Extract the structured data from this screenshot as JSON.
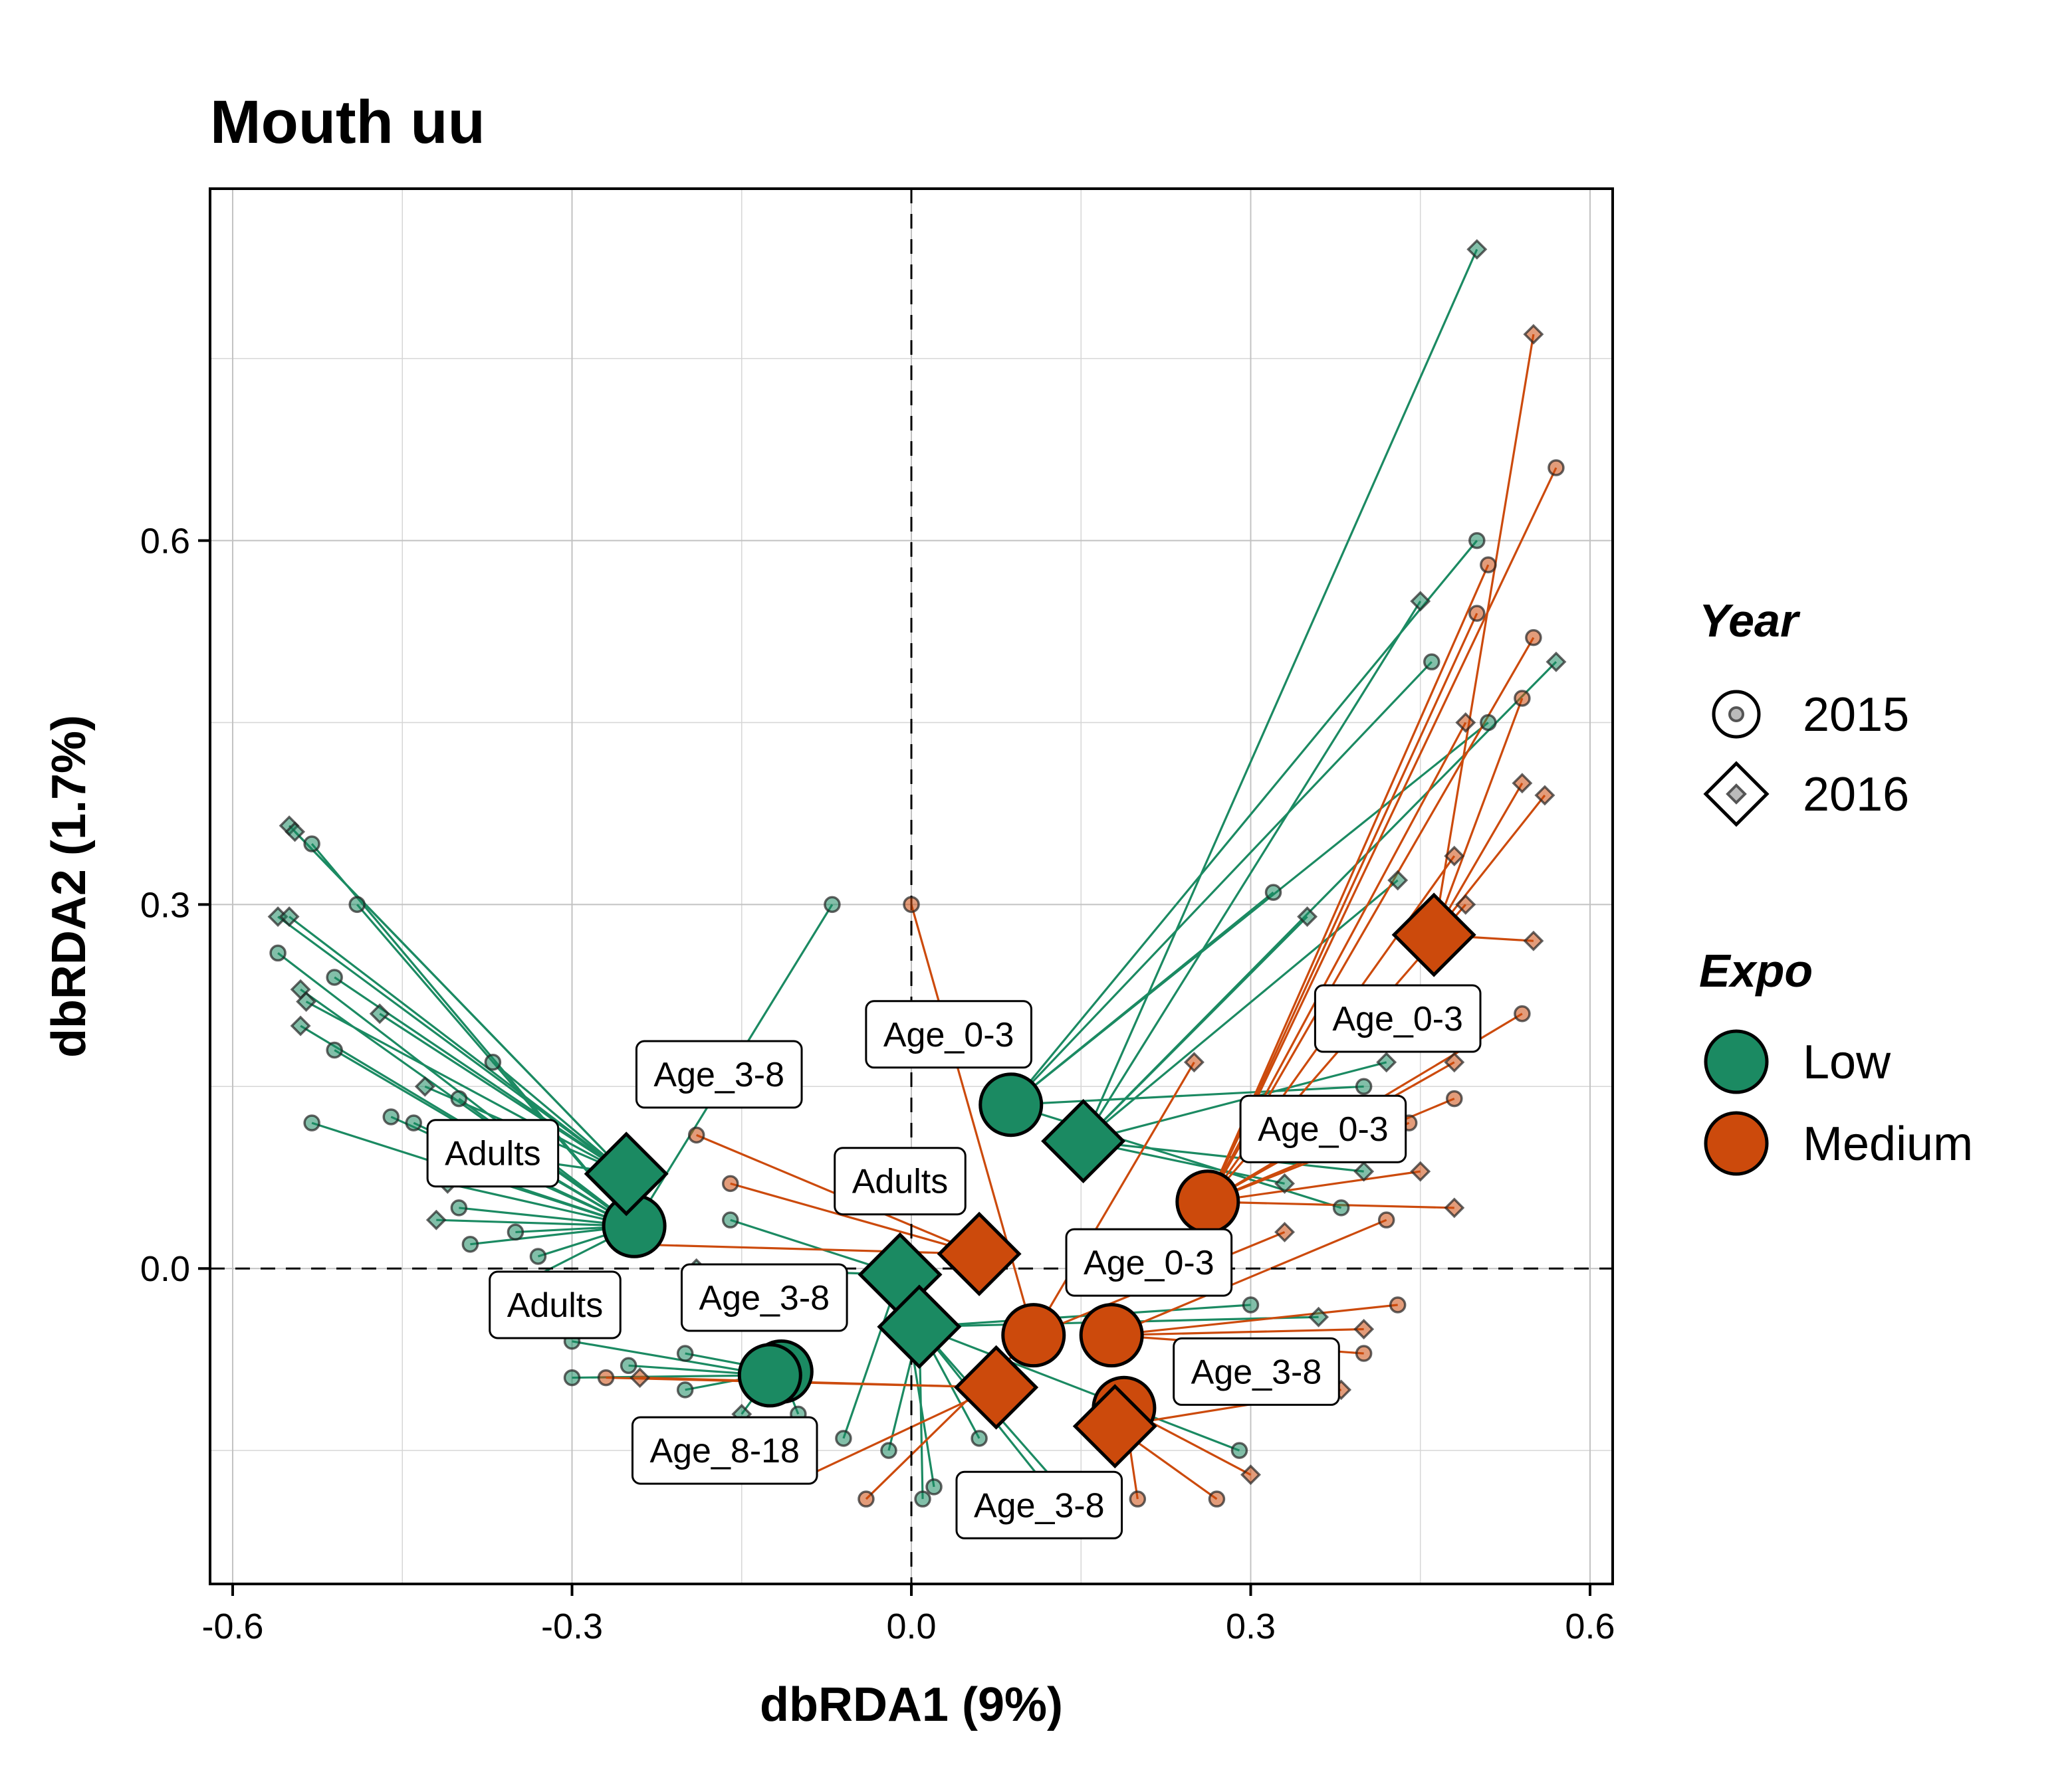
{
  "chart_data": {
    "type": "scatter",
    "title": "Mouth uu",
    "xlabel": "dbRDA1 (9%)",
    "ylabel": "dbRDA2 (1.7%)",
    "xlim": [
      -0.62,
      0.62
    ],
    "ylim": [
      -0.26,
      0.89
    ],
    "xticks": [
      -0.6,
      -0.3,
      0.0,
      0.3,
      0.6
    ],
    "xtick_labels": [
      "-0.6",
      "-0.3",
      "0.0",
      "0.3",
      "0.6"
    ],
    "yticks": [
      0.0,
      0.3,
      0.6
    ],
    "ytick_labels": [
      "0.0",
      "0.3",
      "0.6"
    ],
    "grid": true,
    "reference_lines": {
      "x": 0.0,
      "y": 0.0,
      "style": "dashed"
    },
    "legend": {
      "placement": "right",
      "year_title": "Year",
      "year_items": [
        {
          "label": "2015",
          "shape": "circle"
        },
        {
          "label": "2016",
          "shape": "diamond"
        }
      ],
      "expo_title": "Expo",
      "expo_items": [
        {
          "label": "Low",
          "color": "#1b8a62"
        },
        {
          "label": "Medium",
          "color": "#cc4a0c"
        }
      ]
    },
    "colors": {
      "Low": "#1b8a62",
      "Medium": "#cc4a0c"
    },
    "centroids": [
      {
        "expo": "Low",
        "year": "2015",
        "x": -0.245,
        "y": 0.035
      },
      {
        "expo": "Low",
        "year": "2015",
        "x": -0.115,
        "y": -0.085
      },
      {
        "expo": "Low",
        "year": "2015",
        "x": -0.125,
        "y": -0.088
      },
      {
        "expo": "Low",
        "year": "2015",
        "x": 0.088,
        "y": 0.135
      },
      {
        "expo": "Low",
        "year": "2016",
        "x": -0.252,
        "y": 0.078
      },
      {
        "expo": "Low",
        "year": "2016",
        "x": -0.01,
        "y": -0.005
      },
      {
        "expo": "Low",
        "year": "2016",
        "x": 0.007,
        "y": -0.048
      },
      {
        "expo": "Low",
        "year": "2016",
        "x": 0.152,
        "y": 0.105
      },
      {
        "expo": "Medium",
        "year": "2015",
        "x": 0.108,
        "y": -0.055
      },
      {
        "expo": "Medium",
        "year": "2015",
        "x": 0.177,
        "y": -0.055
      },
      {
        "expo": "Medium",
        "year": "2015",
        "x": 0.188,
        "y": -0.115
      },
      {
        "expo": "Medium",
        "year": "2015",
        "x": 0.262,
        "y": 0.055
      },
      {
        "expo": "Medium",
        "year": "2016",
        "x": 0.06,
        "y": 0.012
      },
      {
        "expo": "Medium",
        "year": "2016",
        "x": 0.075,
        "y": -0.098
      },
      {
        "expo": "Medium",
        "year": "2016",
        "x": 0.18,
        "y": -0.13
      },
      {
        "expo": "Medium",
        "year": "2016",
        "x": 0.462,
        "y": 0.275
      }
    ],
    "group_labels": [
      {
        "text": "Adults",
        "x": -0.37,
        "y": 0.095
      },
      {
        "text": "Adults",
        "x": -0.01,
        "y": 0.072
      },
      {
        "text": "Adults",
        "x": -0.315,
        "y": -0.03
      },
      {
        "text": "Age_3-8",
        "x": -0.17,
        "y": 0.16
      },
      {
        "text": "Age_3-8",
        "x": -0.13,
        "y": -0.024
      },
      {
        "text": "Age_3-8",
        "x": 0.305,
        "y": -0.085
      },
      {
        "text": "Age_3-8",
        "x": 0.113,
        "y": -0.195
      },
      {
        "text": "Age_0-3",
        "x": 0.033,
        "y": 0.193
      },
      {
        "text": "Age_0-3",
        "x": 0.43,
        "y": 0.206
      },
      {
        "text": "Age_0-3",
        "x": 0.364,
        "y": 0.115
      },
      {
        "text": "Age_0-3",
        "x": 0.21,
        "y": 0.005
      },
      {
        "text": "Age_8-18",
        "x": -0.165,
        "y": -0.15
      }
    ],
    "samples": [
      {
        "expo": "Low",
        "year": "2015",
        "x": -0.53,
        "y": 0.35,
        "cx": -0.245,
        "cy": 0.035
      },
      {
        "expo": "Low",
        "year": "2016",
        "x": -0.55,
        "y": 0.365,
        "cx": -0.252,
        "cy": 0.078
      },
      {
        "expo": "Low",
        "year": "2016",
        "x": -0.545,
        "y": 0.36,
        "cx": -0.252,
        "cy": 0.078
      },
      {
        "expo": "Low",
        "year": "2015",
        "x": -0.49,
        "y": 0.3,
        "cx": -0.245,
        "cy": 0.035
      },
      {
        "expo": "Low",
        "year": "2016",
        "x": -0.56,
        "y": 0.29,
        "cx": -0.252,
        "cy": 0.078
      },
      {
        "expo": "Low",
        "year": "2016",
        "x": -0.55,
        "y": 0.29,
        "cx": -0.252,
        "cy": 0.078
      },
      {
        "expo": "Low",
        "year": "2015",
        "x": -0.56,
        "y": 0.26,
        "cx": -0.245,
        "cy": 0.035
      },
      {
        "expo": "Low",
        "year": "2015",
        "x": -0.51,
        "y": 0.24,
        "cx": -0.252,
        "cy": 0.078
      },
      {
        "expo": "Low",
        "year": "2016",
        "x": -0.54,
        "y": 0.23,
        "cx": -0.245,
        "cy": 0.035
      },
      {
        "expo": "Low",
        "year": "2016",
        "x": -0.535,
        "y": 0.22,
        "cx": -0.252,
        "cy": 0.078
      },
      {
        "expo": "Low",
        "year": "2016",
        "x": -0.47,
        "y": 0.21,
        "cx": -0.252,
        "cy": 0.078
      },
      {
        "expo": "Low",
        "year": "2016",
        "x": -0.54,
        "y": 0.2,
        "cx": -0.245,
        "cy": 0.035
      },
      {
        "expo": "Low",
        "year": "2015",
        "x": -0.51,
        "y": 0.18,
        "cx": -0.245,
        "cy": 0.035
      },
      {
        "expo": "Low",
        "year": "2015",
        "x": -0.37,
        "y": 0.17,
        "cx": -0.252,
        "cy": 0.078
      },
      {
        "expo": "Low",
        "year": "2016",
        "x": -0.43,
        "y": 0.15,
        "cx": -0.252,
        "cy": 0.078
      },
      {
        "expo": "Low",
        "year": "2015",
        "x": -0.4,
        "y": 0.14,
        "cx": -0.245,
        "cy": 0.035
      },
      {
        "expo": "Low",
        "year": "2015",
        "x": -0.53,
        "y": 0.12,
        "cx": -0.245,
        "cy": 0.035
      },
      {
        "expo": "Low",
        "year": "2015",
        "x": -0.46,
        "y": 0.125,
        "cx": -0.245,
        "cy": 0.035
      },
      {
        "expo": "Low",
        "year": "2015",
        "x": -0.44,
        "y": 0.12,
        "cx": -0.245,
        "cy": 0.035
      },
      {
        "expo": "Low",
        "year": "2015",
        "x": -0.42,
        "y": 0.1,
        "cx": -0.252,
        "cy": 0.078
      },
      {
        "expo": "Low",
        "year": "2015",
        "x": -0.39,
        "y": 0.08,
        "cx": -0.245,
        "cy": 0.035
      },
      {
        "expo": "Low",
        "year": "2016",
        "x": -0.41,
        "y": 0.07,
        "cx": -0.245,
        "cy": 0.035
      },
      {
        "expo": "Low",
        "year": "2015",
        "x": -0.4,
        "y": 0.05,
        "cx": -0.245,
        "cy": 0.035
      },
      {
        "expo": "Low",
        "year": "2016",
        "x": -0.42,
        "y": 0.04,
        "cx": -0.245,
        "cy": 0.035
      },
      {
        "expo": "Low",
        "year": "2015",
        "x": -0.39,
        "y": 0.02,
        "cx": -0.245,
        "cy": 0.035
      },
      {
        "expo": "Low",
        "year": "2015",
        "x": -0.35,
        "y": 0.03,
        "cx": -0.245,
        "cy": 0.035
      },
      {
        "expo": "Low",
        "year": "2015",
        "x": -0.33,
        "y": 0.01,
        "cx": -0.245,
        "cy": 0.035
      },
      {
        "expo": "Low",
        "year": "2016",
        "x": -0.34,
        "y": -0.01,
        "cx": -0.245,
        "cy": 0.035
      },
      {
        "expo": "Low",
        "year": "2015",
        "x": -0.07,
        "y": 0.3,
        "cx": -0.245,
        "cy": 0.035
      },
      {
        "expo": "Low",
        "year": "2015",
        "x": -0.3,
        "y": -0.06,
        "cx": -0.125,
        "cy": -0.088
      },
      {
        "expo": "Low",
        "year": "2015",
        "x": -0.3,
        "y": -0.09,
        "cx": -0.125,
        "cy": -0.088
      },
      {
        "expo": "Low",
        "year": "2015",
        "x": -0.25,
        "y": -0.08,
        "cx": -0.125,
        "cy": -0.088
      },
      {
        "expo": "Low",
        "year": "2015",
        "x": -0.2,
        "y": -0.1,
        "cx": -0.115,
        "cy": -0.085
      },
      {
        "expo": "Low",
        "year": "2015",
        "x": -0.2,
        "y": -0.07,
        "cx": -0.115,
        "cy": -0.085
      },
      {
        "expo": "Low",
        "year": "2016",
        "x": -0.15,
        "y": -0.12,
        "cx": -0.125,
        "cy": -0.088
      },
      {
        "expo": "Low",
        "year": "2015",
        "x": -0.1,
        "y": -0.12,
        "cx": -0.115,
        "cy": -0.085
      },
      {
        "expo": "Low",
        "year": "2015",
        "x": -0.06,
        "y": -0.14,
        "cx": -0.01,
        "cy": -0.005
      },
      {
        "expo": "Low",
        "year": "2015",
        "x": -0.02,
        "y": -0.15,
        "cx": 0.007,
        "cy": -0.048
      },
      {
        "expo": "Low",
        "year": "2015",
        "x": 0.01,
        "y": -0.19,
        "cx": 0.007,
        "cy": -0.048
      },
      {
        "expo": "Low",
        "year": "2015",
        "x": 0.02,
        "y": -0.18,
        "cx": -0.01,
        "cy": -0.005
      },
      {
        "expo": "Low",
        "year": "2015",
        "x": 0.06,
        "y": -0.14,
        "cx": 0.007,
        "cy": -0.048
      },
      {
        "expo": "Low",
        "year": "2016",
        "x": 0.12,
        "y": -0.18,
        "cx": 0.007,
        "cy": -0.048
      },
      {
        "expo": "Low",
        "year": "2015",
        "x": 0.16,
        "y": -0.21,
        "cx": 0.007,
        "cy": -0.048
      },
      {
        "expo": "Low",
        "year": "2016",
        "x": -0.19,
        "y": 0.0,
        "cx": -0.01,
        "cy": -0.005
      },
      {
        "expo": "Low",
        "year": "2015",
        "x": -0.16,
        "y": 0.04,
        "cx": -0.01,
        "cy": -0.005
      },
      {
        "expo": "Low",
        "year": "2015",
        "x": 0.5,
        "y": 0.6,
        "cx": 0.088,
        "cy": 0.135
      },
      {
        "expo": "Low",
        "year": "2016",
        "x": 0.5,
        "y": 0.84,
        "cx": 0.152,
        "cy": 0.105
      },
      {
        "expo": "Low",
        "year": "2016",
        "x": 0.45,
        "y": 0.55,
        "cx": 0.152,
        "cy": 0.105
      },
      {
        "expo": "Low",
        "year": "2015",
        "x": 0.46,
        "y": 0.5,
        "cx": 0.088,
        "cy": 0.135
      },
      {
        "expo": "Low",
        "year": "2016",
        "x": 0.57,
        "y": 0.5,
        "cx": 0.152,
        "cy": 0.105
      },
      {
        "expo": "Low",
        "year": "2015",
        "x": 0.51,
        "y": 0.45,
        "cx": 0.088,
        "cy": 0.135
      },
      {
        "expo": "Low",
        "year": "2015",
        "x": 0.32,
        "y": 0.31,
        "cx": 0.088,
        "cy": 0.135
      },
      {
        "expo": "Low",
        "year": "2016",
        "x": 0.43,
        "y": 0.32,
        "cx": 0.152,
        "cy": 0.105
      },
      {
        "expo": "Low",
        "year": "2016",
        "x": 0.35,
        "y": 0.29,
        "cx": 0.152,
        "cy": 0.105
      },
      {
        "expo": "Low",
        "year": "2015",
        "x": 0.4,
        "y": 0.15,
        "cx": 0.088,
        "cy": 0.135
      },
      {
        "expo": "Low",
        "year": "2016",
        "x": 0.42,
        "y": 0.17,
        "cx": 0.152,
        "cy": 0.105
      },
      {
        "expo": "Low",
        "year": "2016",
        "x": 0.33,
        "y": 0.07,
        "cx": 0.152,
        "cy": 0.105
      },
      {
        "expo": "Low",
        "year": "2015",
        "x": 0.38,
        "y": 0.05,
        "cx": 0.088,
        "cy": 0.135
      },
      {
        "expo": "Low",
        "year": "2016",
        "x": 0.4,
        "y": 0.08,
        "cx": 0.152,
        "cy": 0.105
      },
      {
        "expo": "Low",
        "year": "2016",
        "x": 0.36,
        "y": -0.04,
        "cx": 0.007,
        "cy": -0.048
      },
      {
        "expo": "Low",
        "year": "2015",
        "x": 0.29,
        "y": -0.15,
        "cx": 0.007,
        "cy": -0.048
      },
      {
        "expo": "Low",
        "year": "2015",
        "x": 0.3,
        "y": -0.03,
        "cx": 0.007,
        "cy": -0.048
      },
      {
        "expo": "Medium",
        "year": "2015",
        "x": 0.0,
        "y": 0.3,
        "cx": 0.108,
        "cy": -0.055
      },
      {
        "expo": "Medium",
        "year": "2015",
        "x": 0.57,
        "y": 0.66,
        "cx": 0.262,
        "cy": 0.055
      },
      {
        "expo": "Medium",
        "year": "2016",
        "x": 0.55,
        "y": 0.77,
        "cx": 0.462,
        "cy": 0.275
      },
      {
        "expo": "Medium",
        "year": "2015",
        "x": 0.51,
        "y": 0.58,
        "cx": 0.262,
        "cy": 0.055
      },
      {
        "expo": "Medium",
        "year": "2015",
        "x": 0.5,
        "y": 0.54,
        "cx": 0.262,
        "cy": 0.055
      },
      {
        "expo": "Medium",
        "year": "2015",
        "x": 0.55,
        "y": 0.52,
        "cx": 0.262,
        "cy": 0.055
      },
      {
        "expo": "Medium",
        "year": "2015",
        "x": 0.54,
        "y": 0.47,
        "cx": 0.462,
        "cy": 0.275
      },
      {
        "expo": "Medium",
        "year": "2016",
        "x": 0.49,
        "y": 0.45,
        "cx": 0.262,
        "cy": 0.055
      },
      {
        "expo": "Medium",
        "year": "2016",
        "x": 0.54,
        "y": 0.4,
        "cx": 0.462,
        "cy": 0.275
      },
      {
        "expo": "Medium",
        "year": "2016",
        "x": 0.56,
        "y": 0.39,
        "cx": 0.462,
        "cy": 0.275
      },
      {
        "expo": "Medium",
        "year": "2016",
        "x": 0.48,
        "y": 0.34,
        "cx": 0.262,
        "cy": 0.055
      },
      {
        "expo": "Medium",
        "year": "2016",
        "x": 0.49,
        "y": 0.3,
        "cx": 0.262,
        "cy": 0.055
      },
      {
        "expo": "Medium",
        "year": "2016",
        "x": 0.55,
        "y": 0.27,
        "cx": 0.462,
        "cy": 0.275
      },
      {
        "expo": "Medium",
        "year": "2015",
        "x": 0.54,
        "y": 0.21,
        "cx": 0.262,
        "cy": 0.055
      },
      {
        "expo": "Medium",
        "year": "2016",
        "x": 0.25,
        "y": 0.17,
        "cx": 0.108,
        "cy": -0.055
      },
      {
        "expo": "Medium",
        "year": "2016",
        "x": 0.48,
        "y": 0.17,
        "cx": 0.262,
        "cy": 0.055
      },
      {
        "expo": "Medium",
        "year": "2015",
        "x": 0.48,
        "y": 0.14,
        "cx": 0.262,
        "cy": 0.055
      },
      {
        "expo": "Medium",
        "year": "2015",
        "x": 0.44,
        "y": 0.12,
        "cx": 0.262,
        "cy": 0.055
      },
      {
        "expo": "Medium",
        "year": "2016",
        "x": 0.45,
        "y": 0.08,
        "cx": 0.262,
        "cy": 0.055
      },
      {
        "expo": "Medium",
        "year": "2016",
        "x": 0.48,
        "y": 0.05,
        "cx": 0.262,
        "cy": 0.055
      },
      {
        "expo": "Medium",
        "year": "2015",
        "x": 0.42,
        "y": 0.04,
        "cx": 0.177,
        "cy": -0.055
      },
      {
        "expo": "Medium",
        "year": "2015",
        "x": -0.19,
        "y": 0.11,
        "cx": 0.06,
        "cy": 0.012
      },
      {
        "expo": "Medium",
        "year": "2015",
        "x": -0.16,
        "y": 0.07,
        "cx": 0.06,
        "cy": 0.012
      },
      {
        "expo": "Medium",
        "year": "2015",
        "x": -0.25,
        "y": 0.02,
        "cx": 0.06,
        "cy": 0.012
      },
      {
        "expo": "Medium",
        "year": "2015",
        "x": -0.27,
        "y": -0.09,
        "cx": 0.075,
        "cy": -0.098
      },
      {
        "expo": "Medium",
        "year": "2016",
        "x": -0.24,
        "y": -0.09,
        "cx": 0.075,
        "cy": -0.098
      },
      {
        "expo": "Medium",
        "year": "2015",
        "x": -0.09,
        "y": -0.17,
        "cx": 0.075,
        "cy": -0.098
      },
      {
        "expo": "Medium",
        "year": "2015",
        "x": -0.04,
        "y": -0.19,
        "cx": 0.108,
        "cy": -0.055
      },
      {
        "expo": "Medium",
        "year": "2015",
        "x": 0.2,
        "y": -0.19,
        "cx": 0.188,
        "cy": -0.115
      },
      {
        "expo": "Medium",
        "year": "2015",
        "x": 0.27,
        "y": -0.19,
        "cx": 0.18,
        "cy": -0.13
      },
      {
        "expo": "Medium",
        "year": "2016",
        "x": 0.3,
        "y": -0.17,
        "cx": 0.188,
        "cy": -0.115
      },
      {
        "expo": "Medium",
        "year": "2015",
        "x": 0.4,
        "y": -0.07,
        "cx": 0.177,
        "cy": -0.055
      },
      {
        "expo": "Medium",
        "year": "2016",
        "x": 0.4,
        "y": -0.05,
        "cx": 0.177,
        "cy": -0.055
      },
      {
        "expo": "Medium",
        "year": "2016",
        "x": 0.38,
        "y": -0.1,
        "cx": 0.18,
        "cy": -0.13
      },
      {
        "expo": "Medium",
        "year": "2015",
        "x": 0.43,
        "y": -0.03,
        "cx": 0.177,
        "cy": -0.055
      },
      {
        "expo": "Medium",
        "year": "2016",
        "x": 0.33,
        "y": 0.03,
        "cx": 0.108,
        "cy": -0.055
      }
    ]
  }
}
